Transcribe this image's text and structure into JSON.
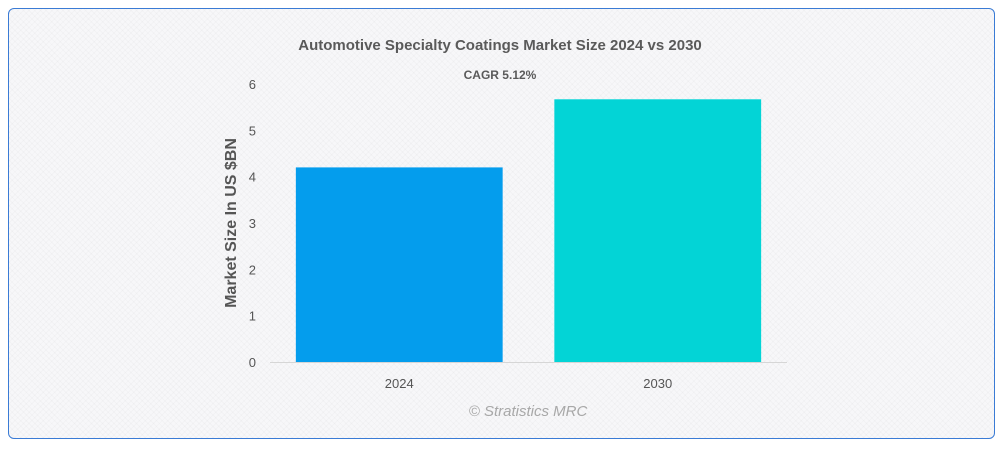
{
  "chart_data": {
    "type": "bar",
    "title": "Automotive Specialty Coatings Market Size 2024 vs 2030",
    "subtitle": "CAGR 5.12%",
    "categories": [
      "2024",
      "2030"
    ],
    "values": [
      4.2,
      5.67
    ],
    "ylabel": "Market Size In US $BN",
    "xlabel": "",
    "ylim": [
      0,
      6
    ],
    "yticks": [
      "0",
      "1",
      "2",
      "3",
      "4",
      "5",
      "6"
    ],
    "grid": false,
    "legend": "none",
    "bar_colors": [
      "#049ded",
      "#03d4d6"
    ]
  },
  "credit": "© Stratistics MRC",
  "colors": {
    "frame_border": "#3a7bd5",
    "axis": "#d6d6d6"
  }
}
